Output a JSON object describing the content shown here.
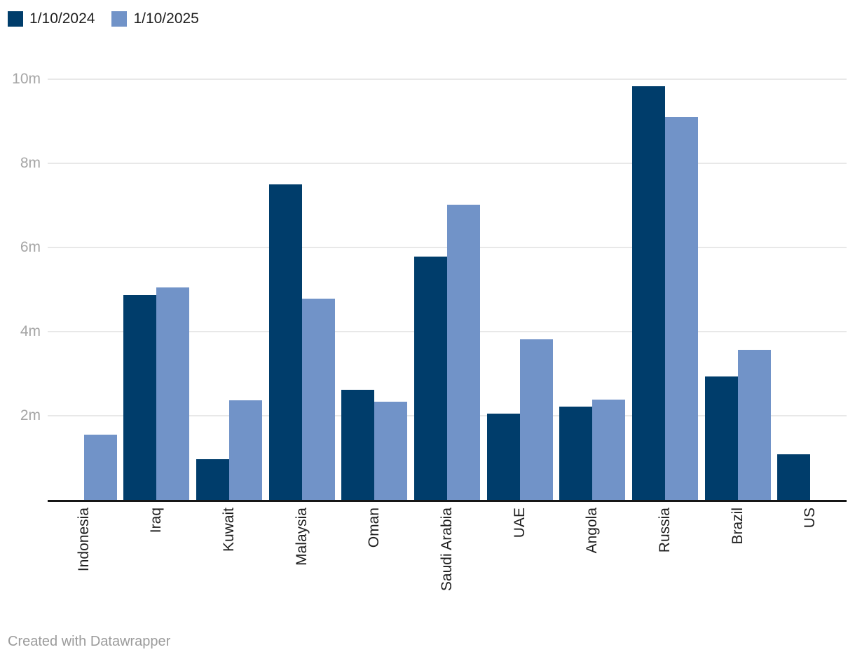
{
  "footer": {
    "text": "Created with Datawrapper"
  },
  "chart_data": {
    "type": "bar",
    "title": "",
    "xlabel": "",
    "ylabel": "",
    "unit": "m",
    "grid": "horizontal",
    "legend_position": "top-left",
    "ylim": [
      0,
      10
    ],
    "categories": [
      "Indonesia",
      "Iraq",
      "Kuwait",
      "Malaysia",
      "Oman",
      "Saudi Arabia",
      "UAE",
      "Angola",
      "Russia",
      "Brazil",
      "US"
    ],
    "series": [
      {
        "name": "1/10/2024",
        "color": "#003d6b",
        "values": [
          0,
          4.86,
          0.97,
          7.5,
          2.62,
          5.78,
          2.05,
          2.22,
          9.83,
          2.93,
          1.08
        ]
      },
      {
        "name": "1/10/2025",
        "color": "#7193c8",
        "values": [
          1.55,
          5.05,
          2.37,
          4.79,
          2.33,
          7.01,
          3.82,
          2.38,
          9.1,
          3.57,
          0
        ]
      }
    ],
    "y_ticks": [
      {
        "value": 10,
        "label": "10m"
      },
      {
        "value": 8,
        "label": "8m"
      },
      {
        "value": 6,
        "label": "6m"
      },
      {
        "value": 4,
        "label": "4m"
      },
      {
        "value": 2,
        "label": "2m"
      }
    ]
  }
}
